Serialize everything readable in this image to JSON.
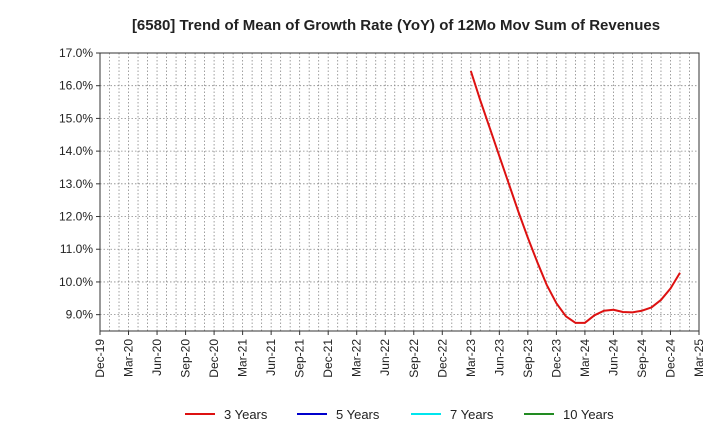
{
  "chart_data": {
    "type": "line",
    "title": "[6580]  Trend of Mean of Growth Rate (YoY) of 12Mo Mov Sum of Revenues",
    "xlabel": "",
    "ylabel": "",
    "ylim": [
      8.5,
      17.0
    ],
    "y_ticks": [
      9.0,
      10.0,
      11.0,
      12.0,
      13.0,
      14.0,
      15.0,
      16.0,
      17.0
    ],
    "y_tick_labels": [
      "9.0%",
      "10.0%",
      "11.0%",
      "12.0%",
      "13.0%",
      "14.0%",
      "15.0%",
      "16.0%",
      "17.0%"
    ],
    "x_tick_labels": [
      "Dec-19",
      "Mar-20",
      "Jun-20",
      "Sep-20",
      "Dec-20",
      "Mar-21",
      "Jun-21",
      "Sep-21",
      "Dec-21",
      "Mar-22",
      "Jun-22",
      "Sep-22",
      "Dec-22",
      "Mar-23",
      "Jun-23",
      "Sep-23",
      "Dec-23",
      "Mar-24",
      "Jun-24",
      "Sep-24",
      "Dec-24",
      "Mar-25"
    ],
    "grid": true,
    "legend_position": "bottom",
    "series": [
      {
        "name": "3 Years",
        "color": "#dd1111",
        "x_start_index": 39,
        "values": [
          16.45,
          15.55,
          14.7,
          13.85,
          13.0,
          12.15,
          11.35,
          10.6,
          9.9,
          9.35,
          8.95,
          8.75,
          8.75,
          8.98,
          9.12,
          9.15,
          9.08,
          9.07,
          9.12,
          9.22,
          9.45,
          9.8,
          10.28
        ]
      },
      {
        "name": "5 Years",
        "color": "#0000cc",
        "x_start_index": 0,
        "values": []
      },
      {
        "name": "7 Years",
        "color": "#00e5ee",
        "x_start_index": 0,
        "values": []
      },
      {
        "name": "10 Years",
        "color": "#228b22",
        "x_start_index": 0,
        "values": []
      }
    ]
  }
}
